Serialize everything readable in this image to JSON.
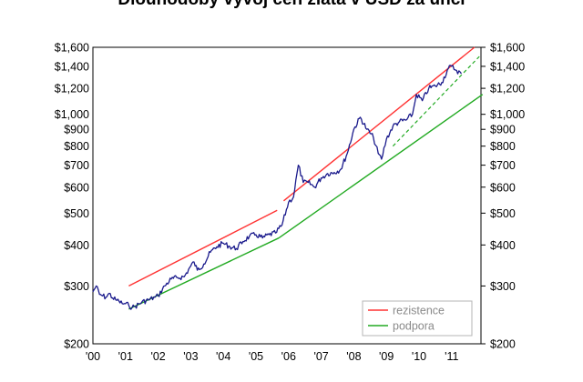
{
  "chart_data": {
    "type": "line",
    "title": "Dlouhodobý vývoj cen zlata v USD za unci",
    "xlabel": "",
    "ylabel": "",
    "y_scale": "log",
    "ylim": [
      200,
      1600
    ],
    "xlim": [
      2000,
      2011.9
    ],
    "y_ticks": [
      {
        "value": 1600,
        "label": "$1,600"
      },
      {
        "value": 1400,
        "label": "$1,400"
      },
      {
        "value": 1200,
        "label": "$1,200"
      },
      {
        "value": 1000,
        "label": "$1,000"
      },
      {
        "value": 900,
        "label": "$900"
      },
      {
        "value": 800,
        "label": "$800"
      },
      {
        "value": 700,
        "label": "$700"
      },
      {
        "value": 600,
        "label": "$600"
      },
      {
        "value": 500,
        "label": "$500"
      },
      {
        "value": 400,
        "label": "$400"
      },
      {
        "value": 300,
        "label": "$300"
      },
      {
        "value": 200,
        "label": "$200"
      }
    ],
    "x_ticks": [
      {
        "value": 2000,
        "label": "'00"
      },
      {
        "value": 2001,
        "label": "'01"
      },
      {
        "value": 2002,
        "label": "'02"
      },
      {
        "value": 2003,
        "label": "'03"
      },
      {
        "value": 2004,
        "label": "'04"
      },
      {
        "value": 2005,
        "label": "'05"
      },
      {
        "value": 2006,
        "label": "'06"
      },
      {
        "value": 2007,
        "label": "'07"
      },
      {
        "value": 2008,
        "label": "'08"
      },
      {
        "value": 2009,
        "label": "'09"
      },
      {
        "value": 2010,
        "label": "'10"
      },
      {
        "value": 2011,
        "label": "'11"
      }
    ],
    "grid": false,
    "legend_position": "bottom-right",
    "legend": [
      {
        "label": "rezistence",
        "color": "#ff3333"
      },
      {
        "label": "podpora",
        "color": "#22aa22"
      }
    ],
    "price_color": "#1a1a8c",
    "price_series": {
      "x": [
        2000.0,
        2000.1,
        2000.2,
        2000.3,
        2000.4,
        2000.5,
        2000.6,
        2000.7,
        2000.8,
        2000.9,
        2001.0,
        2001.1,
        2001.2,
        2001.3,
        2001.5,
        2001.7,
        2001.9,
        2002.0,
        2002.2,
        2002.4,
        2002.6,
        2002.8,
        2003.0,
        2003.1,
        2003.2,
        2003.4,
        2003.6,
        2003.8,
        2004.0,
        2004.2,
        2004.4,
        2004.6,
        2004.8,
        2005.0,
        2005.2,
        2005.4,
        2005.6,
        2005.8,
        2006.0,
        2006.15,
        2006.3,
        2006.45,
        2006.6,
        2006.8,
        2007.0,
        2007.2,
        2007.4,
        2007.6,
        2007.8,
        2008.0,
        2008.2,
        2008.4,
        2008.6,
        2008.75,
        2008.85,
        2009.0,
        2009.2,
        2009.4,
        2009.6,
        2009.8,
        2009.92,
        2010.1,
        2010.3,
        2010.5,
        2010.7,
        2010.9,
        2011.0,
        2011.15,
        2011.3
      ],
      "y": [
        288,
        300,
        283,
        280,
        277,
        285,
        276,
        272,
        270,
        265,
        265,
        262,
        258,
        260,
        268,
        272,
        277,
        280,
        300,
        315,
        318,
        320,
        345,
        355,
        335,
        350,
        380,
        395,
        405,
        395,
        390,
        410,
        425,
        430,
        420,
        430,
        435,
        460,
        540,
        560,
        700,
        620,
        620,
        600,
        640,
        660,
        665,
        680,
        760,
        900,
        980,
        900,
        850,
        760,
        730,
        840,
        920,
        950,
        960,
        1000,
        1150,
        1100,
        1200,
        1220,
        1250,
        1380,
        1400,
        1360,
        1330
      ]
    },
    "resistence_lines": [
      {
        "x": [
          2001.1,
          2005.65
        ],
        "y": [
          300,
          510
        ]
      },
      {
        "x": [
          2005.85,
          2011.7
        ],
        "y": [
          545,
          1600
        ]
      }
    ],
    "support_lines": [
      {
        "x": [
          2001.1,
          2005.7
        ],
        "y": [
          255,
          420
        ]
      },
      {
        "x": [
          2005.7,
          2011.95
        ],
        "y": [
          420,
          1150
        ]
      }
    ],
    "support_dashed": {
      "x": [
        2009.2,
        2011.85
      ],
      "y": [
        800,
        1500
      ]
    }
  }
}
